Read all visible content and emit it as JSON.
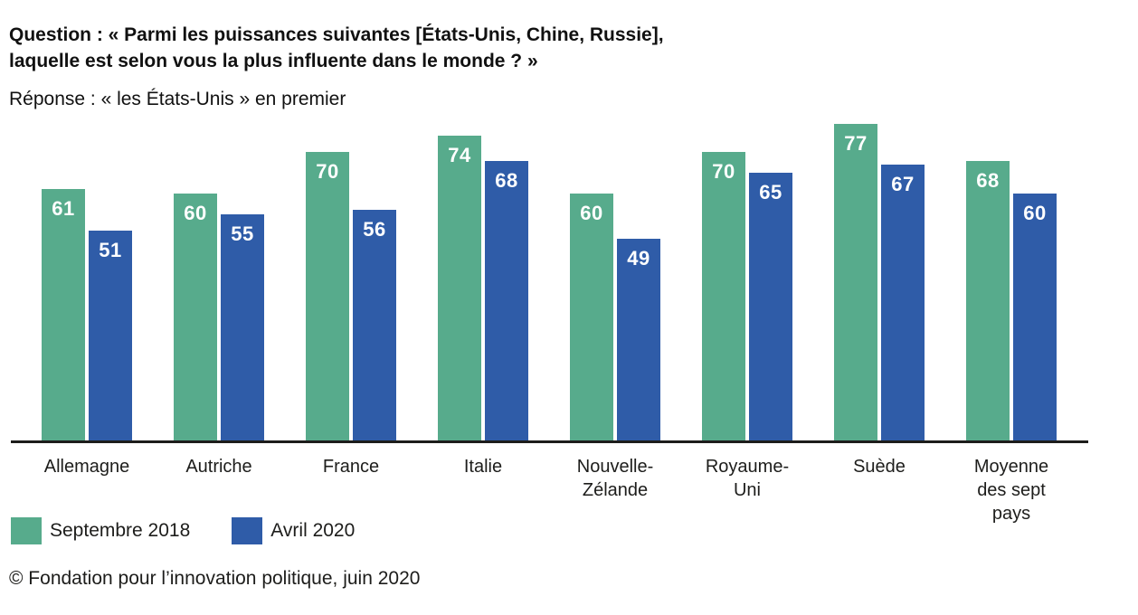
{
  "header": {
    "question": "Question : « Parmi les puissances suivantes [États-Unis, Chine, Russie],\nlaquelle est selon vous la plus influente dans le monde ? »",
    "subtitle": "Réponse : « les États-Unis » en premier"
  },
  "chart_data": {
    "type": "bar",
    "title": "Question : « Parmi les puissances suivantes [États-Unis, Chine, Russie], laquelle est selon vous la plus influente dans le monde ? »",
    "subtitle": "Réponse : « les États-Unis » en premier",
    "categories": [
      "Allemagne",
      "Autriche",
      "France",
      "Italie",
      "Nouvelle-Zélande",
      "Royaume-Uni",
      "Suède",
      "Moyenne des sept pays"
    ],
    "category_display": [
      "Allemagne",
      "Autriche",
      "France",
      "Italie",
      "Nouvelle-\nZélande",
      "Royaume-\nUni",
      "Suède",
      "Moyenne\ndes sept\npays"
    ],
    "series": [
      {
        "name": "Septembre 2018",
        "color": "#57AB8C",
        "values": [
          61,
          60,
          70,
          74,
          60,
          70,
          77,
          68
        ]
      },
      {
        "name": "Avril 2020",
        "color": "#2F5CA8",
        "values": [
          51,
          55,
          56,
          68,
          49,
          65,
          67,
          60
        ]
      }
    ],
    "ylim": [
      0,
      100
    ],
    "grid": false,
    "y_axis_shown": false,
    "legend_position": "bottom-left",
    "value_labels": "inside-top-white"
  },
  "colors": {
    "series_green": "#57AB8C",
    "series_blue": "#2F5CA8",
    "axis_line": "#1d1d1b",
    "text": "#111111",
    "background": "#ffffff"
  },
  "footer": {
    "credit": "© Fondation pour l’innovation politique, juin 2020"
  }
}
